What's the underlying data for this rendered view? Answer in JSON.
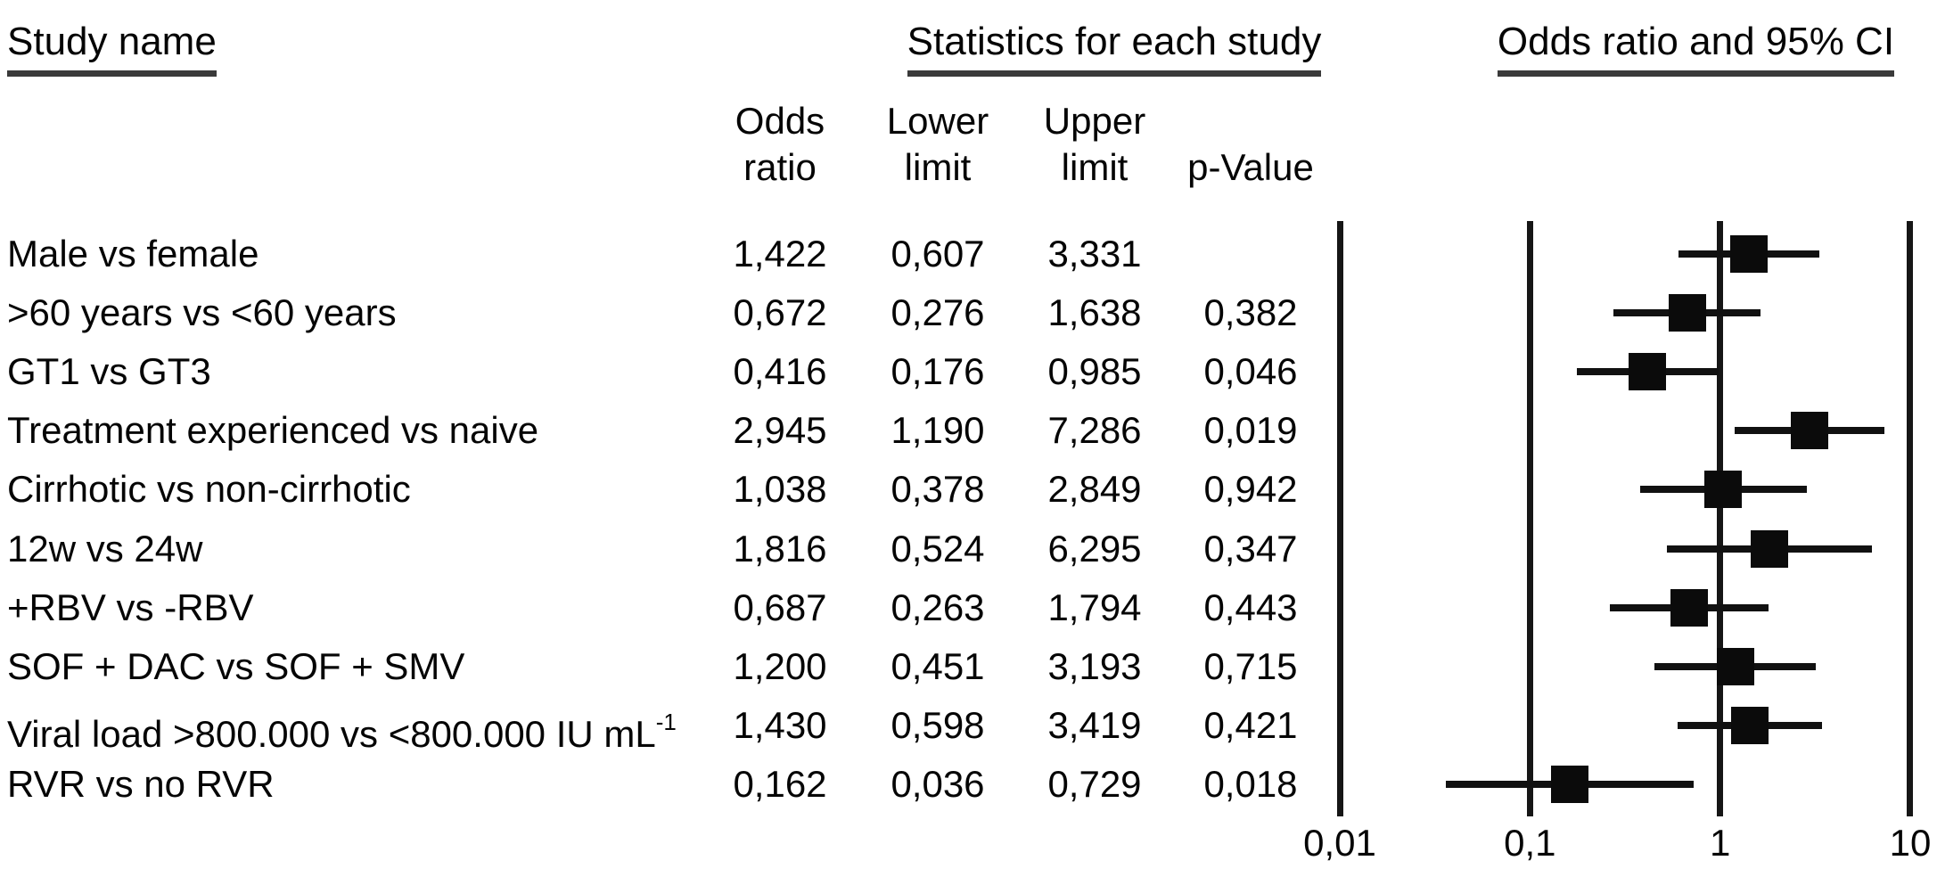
{
  "figure": {
    "study_name_header": "Study name",
    "statistics_header": "Statistics for each study",
    "plot_header": "Odds ratio and 95% CI"
  },
  "table": {
    "columns": {
      "odds_ratio": [
        "Odds",
        "ratio"
      ],
      "lower_limit": [
        "Lower",
        "limit"
      ],
      "upper_limit": [
        "Upper",
        "limit"
      ],
      "p_value": "p-Value"
    },
    "rows": [
      {
        "name": "Male vs female",
        "odds_ratio": "1,422",
        "lower_limit": "0,607",
        "upper_limit": "3,331",
        "p_value": ""
      },
      {
        "name": ">60 years vs <60 years",
        "odds_ratio": "0,672",
        "lower_limit": "0,276",
        "upper_limit": "1,638",
        "p_value": "0,382"
      },
      {
        "name": "GT1 vs GT3",
        "odds_ratio": "0,416",
        "lower_limit": "0,176",
        "upper_limit": "0,985",
        "p_value": "0,046"
      },
      {
        "name": "Treatment experienced vs naive",
        "odds_ratio": "2,945",
        "lower_limit": "1,190",
        "upper_limit": "7,286",
        "p_value": "0,019"
      },
      {
        "name": "Cirrhotic vs non-cirrhotic",
        "odds_ratio": "1,038",
        "lower_limit": "0,378",
        "upper_limit": "2,849",
        "p_value": "0,942"
      },
      {
        "name": "12w vs 24w",
        "odds_ratio": "1,816",
        "lower_limit": "0,524",
        "upper_limit": "6,295",
        "p_value": "0,347"
      },
      {
        "name": "+RBV vs -RBV",
        "odds_ratio": "0,687",
        "lower_limit": "0,263",
        "upper_limit": "1,794",
        "p_value": "0,443"
      },
      {
        "name": "SOF + DAC vs SOF + SMV",
        "odds_ratio": "1,200",
        "lower_limit": "0,451",
        "upper_limit": "3,193",
        "p_value": "0,715"
      },
      {
        "name": "Viral load >800.000 vs <800.000 IU mL",
        "name_superscript": "-1",
        "odds_ratio": "1,430",
        "lower_limit": "0,598",
        "upper_limit": "3,419",
        "p_value": "0,421"
      },
      {
        "name": "RVR vs no RVR",
        "odds_ratio": "0,162",
        "lower_limit": "0,036",
        "upper_limit": "0,729",
        "p_value": "0,018"
      }
    ]
  },
  "chart_data": {
    "type": "scatter",
    "subtype": "forest-plot",
    "title": "Odds ratio and 95% CI",
    "x_scale": "log",
    "xlim": [
      0.01,
      10
    ],
    "grid": "vertical-lines-at-ticks",
    "marker": "filled-black-square",
    "x_ticks": [
      {
        "value": 0.01,
        "label": "0,01"
      },
      {
        "value": 0.1,
        "label": "0,1"
      },
      {
        "value": 1,
        "label": "1"
      },
      {
        "value": 10,
        "label": "10"
      }
    ],
    "series": [
      {
        "name": "Male vs female",
        "odds_ratio": 1.422,
        "lower": 0.607,
        "upper": 3.331,
        "p_value": null
      },
      {
        "name": ">60 years vs <60 years",
        "odds_ratio": 0.672,
        "lower": 0.276,
        "upper": 1.638,
        "p_value": 0.382
      },
      {
        "name": "GT1 vs GT3",
        "odds_ratio": 0.416,
        "lower": 0.176,
        "upper": 0.985,
        "p_value": 0.046
      },
      {
        "name": "Treatment experienced vs naive",
        "odds_ratio": 2.945,
        "lower": 1.19,
        "upper": 7.286,
        "p_value": 0.019
      },
      {
        "name": "Cirrhotic vs non-cirrhotic",
        "odds_ratio": 1.038,
        "lower": 0.378,
        "upper": 2.849,
        "p_value": 0.942
      },
      {
        "name": "12w vs 24w",
        "odds_ratio": 1.816,
        "lower": 0.524,
        "upper": 6.295,
        "p_value": 0.347
      },
      {
        "name": "+RBV vs -RBV",
        "odds_ratio": 0.687,
        "lower": 0.263,
        "upper": 1.794,
        "p_value": 0.443
      },
      {
        "name": "SOF + DAC vs SOF + SMV",
        "odds_ratio": 1.2,
        "lower": 0.451,
        "upper": 3.193,
        "p_value": 0.715
      },
      {
        "name": "Viral load >800.000 vs <800.000 IU mL-1",
        "odds_ratio": 1.43,
        "lower": 0.598,
        "upper": 3.419,
        "p_value": 0.421
      },
      {
        "name": "RVR vs no RVR",
        "odds_ratio": 0.162,
        "lower": 0.036,
        "upper": 0.729,
        "p_value": 0.018
      }
    ]
  }
}
